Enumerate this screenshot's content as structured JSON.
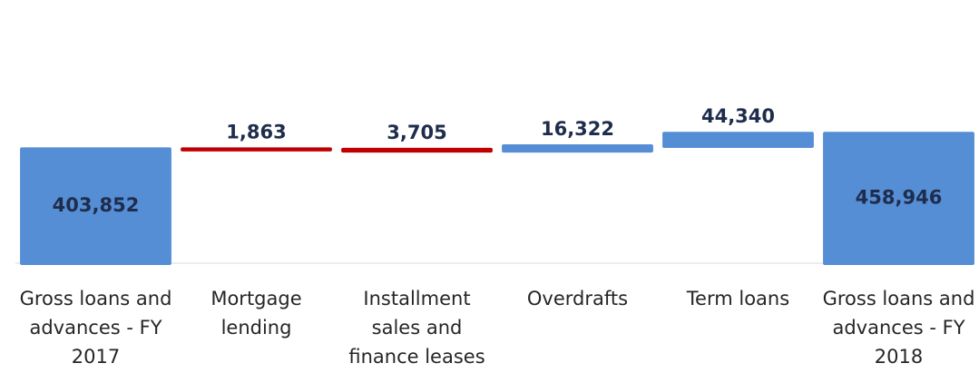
{
  "chart_data": {
    "type": "waterfall",
    "categories": [
      "Gross loans and advances - FY 2017",
      "Mortgage lending",
      "Installment sales and finance leases",
      "Overdrafts",
      "Term loans",
      "Gross loans and advances - FY 2018"
    ],
    "values": [
      403852,
      -1863,
      -3705,
      16322,
      44340,
      458946
    ],
    "value_labels": [
      "403,852",
      "1,863",
      "3,705",
      "16,322",
      "44,340",
      "458,946"
    ],
    "measures": [
      "total",
      "relative",
      "relative",
      "relative",
      "relative",
      "total"
    ],
    "colors": {
      "total": "#558ed5",
      "increase": "#558ed5",
      "decrease": "#c00000"
    },
    "ylim": [
      0,
      900000
    ]
  }
}
